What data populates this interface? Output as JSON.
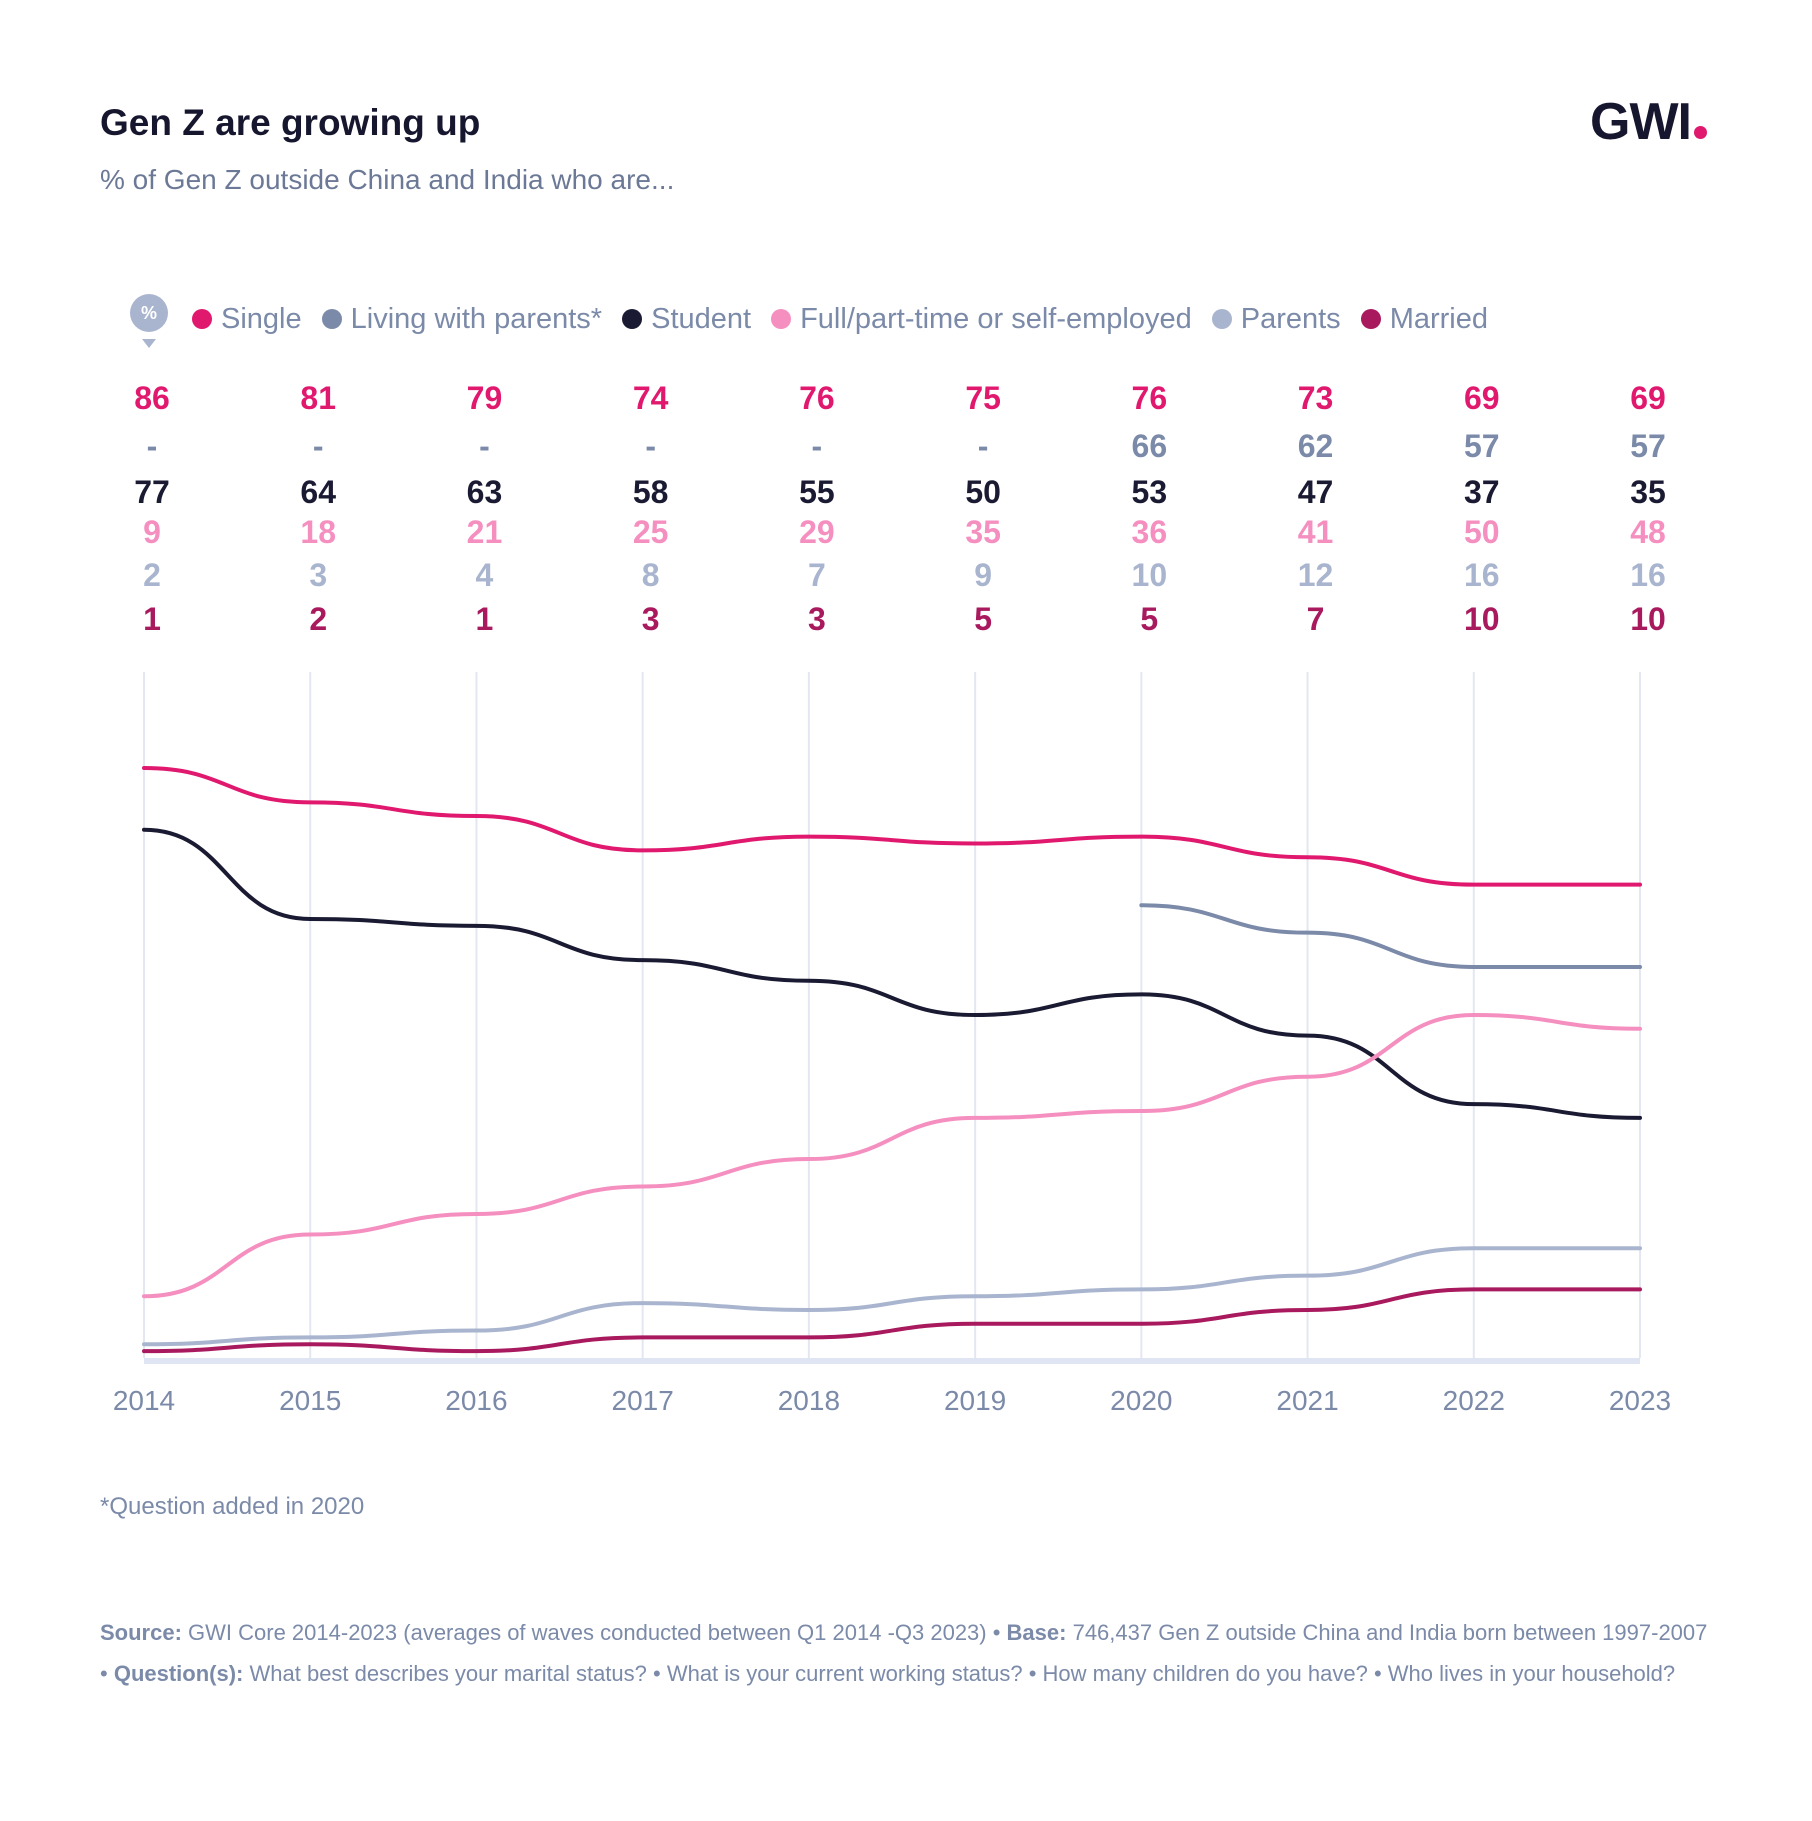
{
  "header": {
    "title": "Gen Z are growing up",
    "subtitle": "% of Gen Z outside China and India who are...",
    "logo": "GWI"
  },
  "legend": {
    "unit_icon": "%"
  },
  "chart_data": {
    "type": "line",
    "title": "Gen Z are growing up",
    "subtitle": "% of Gen Z outside China and India who are...",
    "x": [
      "2014",
      "2015",
      "2016",
      "2017",
      "2018",
      "2019",
      "2020",
      "2021",
      "2022",
      "2023"
    ],
    "ylim": [
      0,
      100
    ],
    "grid": "vertical",
    "legend_placement": "top",
    "missing_label": "-",
    "series": [
      {
        "name": "Single",
        "color": "#e0196f",
        "values": [
          86,
          81,
          79,
          74,
          76,
          75,
          76,
          73,
          69,
          69
        ]
      },
      {
        "name": "Living with parents*",
        "color": "#7b8aa8",
        "values": [
          null,
          null,
          null,
          null,
          null,
          null,
          66,
          62,
          57,
          57
        ]
      },
      {
        "name": "Student",
        "color": "#1a1a33",
        "values": [
          77,
          64,
          63,
          58,
          55,
          50,
          53,
          47,
          37,
          35
        ]
      },
      {
        "name": "Full/part-time or self-employed",
        "color": "#f48fc0",
        "values": [
          9,
          18,
          21,
          25,
          29,
          35,
          36,
          41,
          50,
          48
        ]
      },
      {
        "name": "Parents",
        "color": "#a9b5cf",
        "values": [
          2,
          3,
          4,
          8,
          7,
          9,
          10,
          12,
          16,
          16
        ]
      },
      {
        "name": "Married",
        "color": "#a8195e",
        "values": [
          1,
          2,
          1,
          3,
          3,
          5,
          5,
          7,
          10,
          10
        ]
      }
    ]
  },
  "footnote": "*Question added in 2020",
  "source": {
    "source_label": "Source:",
    "source_text": " GWI Core 2014-2023 (averages of waves conducted between Q1 2014 -Q3 2023) • ",
    "base_label": "Base:",
    "base_text": " 746,437 Gen Z outside China and India born between 1997-2007 • ",
    "question_label": "Question(s):",
    "question_text": " What best describes your marital status? • What is your current working status? • How many children do you have? • Who lives in your household?"
  }
}
